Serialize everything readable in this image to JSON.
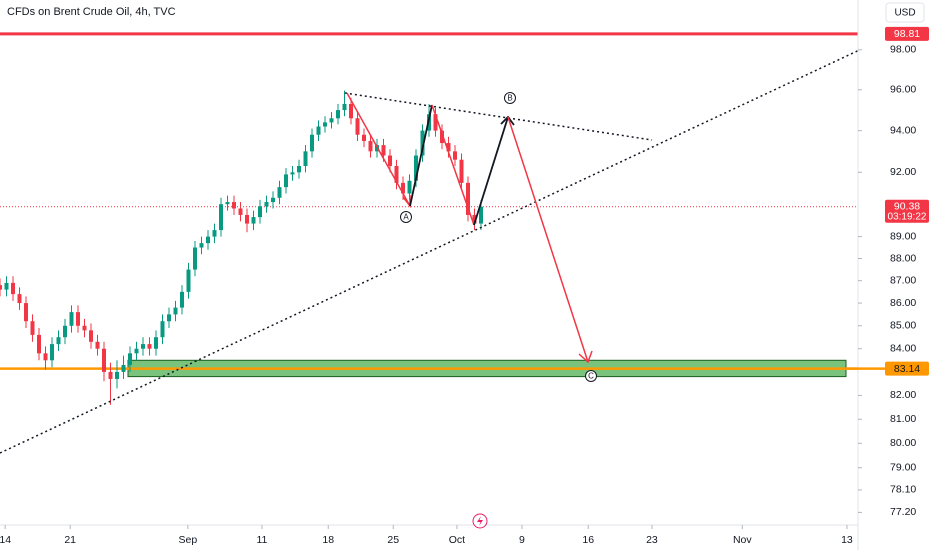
{
  "chart_data": {
    "type": "candlestick",
    "title": "CFDs on Brent Crude Oil, 4h, TVC",
    "currency": "USD",
    "log_scale": true,
    "grid": false,
    "up_color": "#089981",
    "down_color": "#f23645",
    "xlim": [
      0,
      132
    ],
    "xticks": [
      {
        "value": 0.8,
        "label": "14"
      },
      {
        "value": 10.8,
        "label": "21"
      },
      {
        "value": 28.9,
        "label": "Sep"
      },
      {
        "value": 40.3,
        "label": "11"
      },
      {
        "value": 50.5,
        "label": "18"
      },
      {
        "value": 60.5,
        "label": "25"
      },
      {
        "value": 70.3,
        "label": "Oct"
      },
      {
        "value": 80.3,
        "label": "9"
      },
      {
        "value": 90.5,
        "label": "16"
      },
      {
        "value": 100.3,
        "label": "23"
      },
      {
        "value": 114.2,
        "label": "Nov"
      },
      {
        "value": 130.3,
        "label": "13"
      }
    ],
    "ylim": [
      76.7,
      100.55
    ],
    "yticks": [
      {
        "value": 98,
        "label": "98.00"
      },
      {
        "value": 96,
        "label": "96.00"
      },
      {
        "value": 94,
        "label": "94.00"
      },
      {
        "value": 92,
        "label": "92.00"
      },
      {
        "value": 89,
        "label": "89.00"
      },
      {
        "value": 88,
        "label": "88.00"
      },
      {
        "value": 87,
        "label": "87.00"
      },
      {
        "value": 86,
        "label": "86.00"
      },
      {
        "value": 85,
        "label": "85.00"
      },
      {
        "value": 84,
        "label": "84.00"
      },
      {
        "value": 82,
        "label": "82.00"
      },
      {
        "value": 81,
        "label": "81.00"
      },
      {
        "value": 80,
        "label": "80.00"
      },
      {
        "value": 79,
        "label": "79.00"
      },
      {
        "value": 78.1,
        "label": "78.10"
      },
      {
        "value": 77.2,
        "label": "77.20"
      }
    ],
    "open": [
      86.8,
      86.6,
      86.9,
      86.4,
      86.0,
      85.2,
      84.6,
      83.8,
      83.5,
      84.2,
      84.5,
      85.0,
      85.6,
      85.0,
      84.8,
      84.3,
      84.0,
      83.0,
      82.7,
      83.0,
      83.3,
      83.8,
      84.0,
      84.2,
      84.0,
      84.5,
      85.2,
      85.5,
      85.8,
      86.5,
      87.5,
      88.5,
      88.7,
      89.0,
      89.3,
      90.5,
      90.6,
      90.3,
      90.0,
      89.6,
      89.9,
      90.4,
      90.6,
      90.8,
      91.3,
      91.9,
      92.0,
      92.3,
      93.0,
      93.8,
      94.2,
      94.4,
      94.6,
      95.0,
      95.3,
      94.6,
      93.8,
      93.5,
      93.0,
      93.3,
      92.8,
      92.3,
      91.5,
      91.0,
      91.6,
      92.8,
      94.0,
      94.8,
      94.0,
      93.4,
      93.0,
      92.6,
      91.5,
      90.0,
      89.6
    ],
    "high": [
      87.1,
      87.2,
      87.2,
      86.7,
      86.3,
      85.5,
      84.9,
      84.1,
      84.5,
      84.8,
      85.3,
      85.9,
      85.9,
      85.3,
      85.1,
      84.6,
      84.3,
      83.4,
      83.5,
      83.7,
      84.1,
      84.3,
      84.5,
      84.5,
      84.8,
      85.5,
      85.8,
      86.1,
      86.8,
      87.8,
      88.8,
      89.0,
      89.3,
      89.6,
      90.8,
      90.9,
      90.9,
      90.6,
      90.3,
      90.2,
      90.7,
      90.9,
      91.1,
      91.6,
      92.2,
      92.3,
      92.6,
      93.3,
      94.1,
      94.5,
      94.7,
      94.9,
      95.3,
      95.96,
      95.6,
      94.9,
      94.1,
      93.8,
      93.6,
      93.6,
      93.1,
      92.6,
      91.8,
      91.9,
      93.1,
      94.3,
      95.3,
      95.1,
      94.3,
      93.7,
      93.3,
      92.9,
      91.8,
      90.3,
      90.7
    ],
    "low": [
      86.3,
      86.3,
      86.1,
      85.7,
      84.9,
      84.3,
      83.5,
      83.1,
      83.2,
      83.9,
      84.2,
      84.7,
      84.7,
      84.5,
      84.0,
      83.7,
      82.6,
      81.6,
      82.3,
      82.7,
      83.0,
      83.5,
      83.7,
      83.7,
      83.7,
      84.2,
      84.9,
      85.2,
      85.5,
      86.2,
      87.2,
      88.2,
      88.4,
      88.7,
      89.0,
      90.2,
      90.0,
      89.7,
      89.2,
      89.3,
      89.6,
      90.1,
      90.3,
      90.5,
      91.0,
      91.6,
      91.7,
      92.0,
      92.7,
      93.5,
      93.9,
      94.1,
      94.3,
      94.7,
      94.3,
      93.5,
      93.2,
      92.7,
      92.7,
      92.5,
      92.0,
      91.2,
      90.7,
      90.7,
      91.3,
      92.5,
      93.7,
      93.7,
      93.1,
      92.7,
      92.3,
      91.2,
      89.7,
      89.3,
      89.3
    ],
    "close": [
      86.6,
      86.9,
      86.4,
      86.0,
      85.2,
      84.6,
      83.8,
      83.5,
      84.2,
      84.5,
      85.0,
      85.6,
      85.0,
      84.8,
      84.3,
      84.0,
      83.0,
      82.7,
      83.0,
      83.3,
      83.8,
      84.0,
      84.2,
      84.0,
      84.5,
      85.2,
      85.5,
      85.8,
      86.5,
      87.5,
      88.5,
      88.7,
      89.0,
      89.3,
      90.5,
      90.6,
      90.3,
      90.0,
      89.6,
      89.9,
      90.4,
      90.6,
      90.8,
      91.3,
      91.9,
      92.0,
      92.3,
      93.0,
      93.8,
      94.2,
      94.4,
      94.6,
      95.0,
      95.3,
      94.6,
      93.8,
      93.5,
      93.0,
      93.3,
      92.8,
      92.3,
      91.5,
      91.0,
      91.6,
      92.8,
      94.0,
      94.8,
      94.0,
      93.4,
      93.0,
      92.6,
      91.5,
      90.0,
      89.6,
      90.38
    ],
    "levels": [
      {
        "value": 98.81,
        "color": "#f23645"
      },
      {
        "value": 83.14,
        "color": "#ff9800"
      }
    ],
    "last_price": {
      "value": 90.38,
      "countdown": "03:19:22",
      "color": "#f23645"
    },
    "zone": {
      "low": 82.8,
      "high": 83.5,
      "color": "#4caf50"
    },
    "wave_labels": [
      "A",
      "B",
      "C"
    ]
  }
}
